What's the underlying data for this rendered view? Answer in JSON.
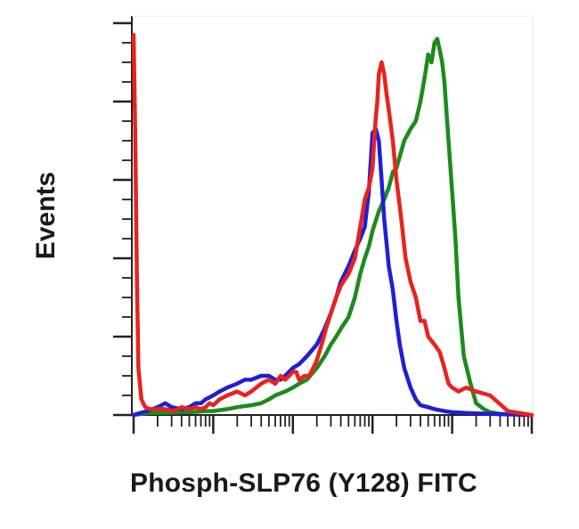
{
  "chart_data": {
    "type": "line",
    "title": "",
    "xlabel": "Phosph-SLP76 (Y128) FITC",
    "ylabel": "Events",
    "xscale": "log",
    "xlim": [
      1,
      100000
    ],
    "ylim": [
      0,
      100
    ],
    "grid": false,
    "legend": "none",
    "series": [
      {
        "color": "#e8231d",
        "x": [
          1,
          1.05,
          1.1,
          1.15,
          1.25,
          1.4,
          1.6,
          2,
          2.5,
          3.2,
          4,
          5,
          6,
          7,
          8,
          9,
          10,
          12,
          15,
          20,
          25,
          30,
          40,
          50,
          60,
          70,
          80,
          90,
          100,
          110,
          120,
          140,
          160,
          180,
          200,
          230,
          260,
          300,
          350,
          400,
          500,
          600,
          700,
          800,
          900,
          1000,
          1050,
          1100,
          1150,
          1200,
          1300,
          1400,
          1500,
          1600,
          1800,
          2000,
          2300,
          2600,
          3000,
          3500,
          4000,
          4500,
          5000,
          6000,
          7000,
          8000,
          9000,
          10000,
          12000,
          15000,
          20000,
          30000,
          50000,
          100000
        ],
        "y": [
          97,
          70,
          35,
          12,
          4,
          2,
          1.5,
          1.5,
          1.5,
          1,
          2,
          1.5,
          2,
          1.5,
          2,
          3,
          2.5,
          4,
          5,
          6,
          5,
          6,
          8,
          9,
          8,
          10,
          9,
          10,
          11,
          11,
          9,
          10,
          10,
          12,
          14,
          18,
          22,
          26,
          30,
          33,
          36,
          40,
          48,
          55,
          58,
          63,
          70,
          76,
          80,
          87,
          90,
          87,
          82,
          78,
          70,
          60,
          50,
          40,
          34,
          30,
          24,
          24,
          20,
          18,
          16,
          12,
          8,
          7,
          6,
          7,
          6,
          5,
          1,
          0
        ]
      },
      {
        "color": "#1f1fd6",
        "x": [
          1,
          1.2,
          1.5,
          2,
          2.5,
          3,
          4,
          5,
          6,
          7,
          8,
          9,
          10,
          12,
          15,
          20,
          25,
          30,
          40,
          50,
          60,
          70,
          80,
          100,
          120,
          150,
          200,
          250,
          300,
          350,
          400,
          500,
          600,
          700,
          800,
          900,
          1000,
          1100,
          1200,
          1300,
          1400,
          1500,
          1600,
          1800,
          2000,
          2200,
          2500,
          3000,
          3500,
          4000,
          5000,
          6000,
          8000,
          10000,
          15000,
          30000,
          100000
        ],
        "y": [
          0,
          0.5,
          1,
          2,
          3,
          2,
          1.5,
          2,
          3,
          3,
          4,
          4.5,
          5,
          6,
          7,
          8,
          9,
          9,
          10,
          10,
          9,
          9,
          10,
          12,
          13,
          15,
          18,
          22,
          26,
          30,
          34,
          38,
          42,
          45,
          48,
          57,
          72,
          73,
          70,
          60,
          50,
          44,
          38,
          32,
          24,
          18,
          12,
          7,
          4,
          2.5,
          2,
          1.5,
          1,
          0.7,
          0.5,
          0.3,
          0
        ]
      },
      {
        "color": "#1e8a1e",
        "x": [
          1,
          1.5,
          2,
          3,
          4,
          6,
          8,
          10,
          15,
          20,
          30,
          40,
          50,
          60,
          80,
          100,
          120,
          150,
          200,
          250,
          300,
          350,
          400,
          500,
          600,
          700,
          800,
          900,
          1000,
          1200,
          1400,
          1600,
          1800,
          2000,
          2200,
          2500,
          3000,
          3500,
          4000,
          4500,
          5000,
          5500,
          6000,
          6500,
          7000,
          7500,
          8000,
          9000,
          10000,
          11000,
          12000,
          14000,
          17000,
          20000,
          25000,
          30000,
          40000,
          100000
        ],
        "y": [
          0,
          0.5,
          0.5,
          0.6,
          0.7,
          0.8,
          1,
          1,
          1.5,
          2,
          2.5,
          3,
          4,
          5,
          6,
          7,
          8,
          9,
          12,
          15,
          18,
          20,
          22,
          25,
          30,
          36,
          40,
          43,
          47,
          52,
          55,
          58,
          62,
          63,
          66,
          70,
          73,
          75,
          80,
          86,
          92,
          90,
          95,
          96,
          93,
          90,
          85,
          70,
          57,
          45,
          30,
          15,
          8,
          3,
          1.5,
          0.7,
          0.3,
          0
        ]
      }
    ]
  }
}
